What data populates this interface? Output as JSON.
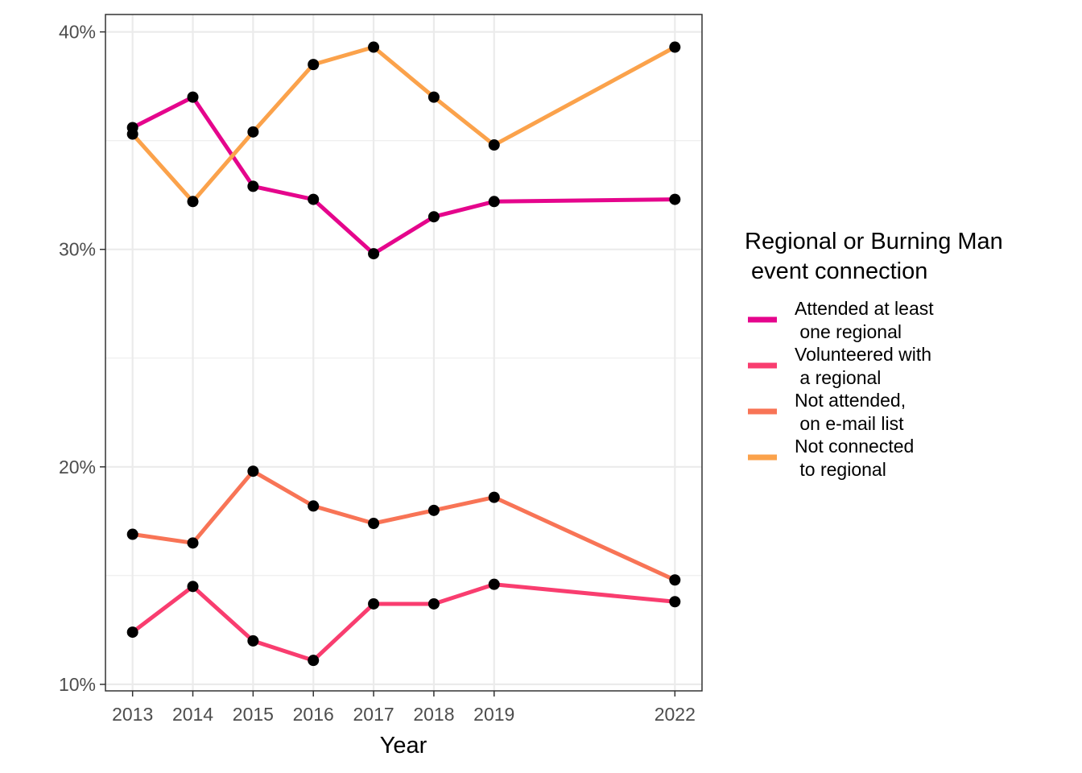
{
  "chart_data": {
    "type": "line",
    "title": "",
    "xlabel": "Year",
    "ylabel": "",
    "x": [
      2013,
      2014,
      2015,
      2016,
      2017,
      2018,
      2019,
      2022
    ],
    "x_tick_labels": [
      "2013",
      "2014",
      "2015",
      "2016",
      "2017",
      "2018",
      "2019",
      "2022"
    ],
    "y_ticks": [
      10,
      20,
      30,
      40
    ],
    "y_tick_labels": [
      "10%",
      "20%",
      "30%",
      "40%"
    ],
    "xlim": [
      2012.55,
      2022.45
    ],
    "ylim": [
      9.7,
      40.8
    ],
    "grid": true,
    "legend_position": "right",
    "legend_title_lines": [
      "Regional or Burning Man",
      " event connection"
    ],
    "point_color": "#000000",
    "series": [
      {
        "name_lines": [
          "Attended at least",
          " one regional"
        ],
        "color": "#e5058c",
        "values": [
          35.6,
          37.0,
          32.9,
          32.3,
          29.8,
          31.5,
          32.2,
          32.3
        ]
      },
      {
        "name_lines": [
          "Volunteered with",
          " a regional"
        ],
        "color": "#f93d6f",
        "values": [
          12.4,
          14.5,
          12.0,
          11.1,
          13.7,
          13.7,
          14.6,
          13.8
        ]
      },
      {
        "name_lines": [
          "Not attended,",
          " on e-mail list"
        ],
        "color": "#f87456",
        "values": [
          16.9,
          16.5,
          19.8,
          18.2,
          17.4,
          18.0,
          18.6,
          14.8
        ]
      },
      {
        "name_lines": [
          "Not connected",
          " to regional"
        ],
        "color": "#fba24b",
        "values": [
          35.3,
          32.2,
          35.4,
          38.5,
          39.3,
          37.0,
          34.8,
          39.3
        ]
      }
    ]
  }
}
